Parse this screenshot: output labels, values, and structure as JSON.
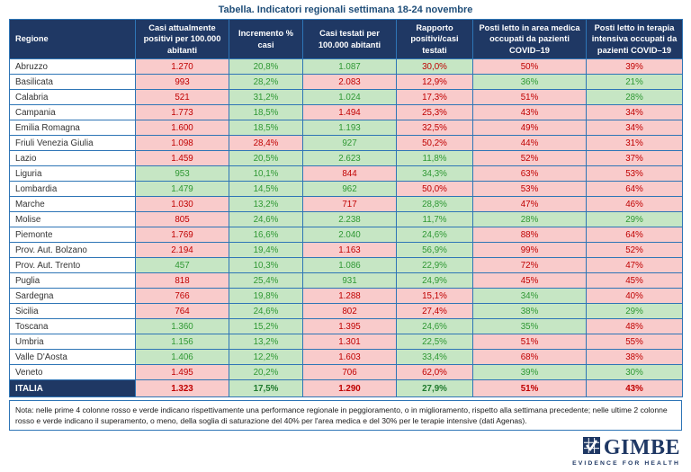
{
  "title": "Tabella. Indicatori regionali settimana 18-24 novembre",
  "colors": {
    "header_bg": "#1f3864",
    "title_text": "#1f4e79",
    "grid_border": "#2e75b6",
    "worsening_bg": "#f9cbcb",
    "worsening_text": "#c00000",
    "improving_bg": "#c6e6c4",
    "improving_text": "#2f9833"
  },
  "table": {
    "columns": [
      "Regione",
      "Casi attualmente positivi per 100.000 abitanti",
      "Incremento % casi",
      "Casi testati per 100.000 abitanti",
      "Rapporto positivi/casi testati",
      "Posti letto in area medica occupati da pazienti COVID–19",
      "Posti letto in terapia intensiva occupati da pazienti COVID–19"
    ],
    "rows": [
      {
        "region": "Abruzzo",
        "cells": [
          {
            "v": "1.270",
            "bg": "red"
          },
          {
            "v": "20,8%",
            "bg": "green"
          },
          {
            "v": "1.087",
            "bg": "green"
          },
          {
            "v": "30,0%",
            "bg": "green",
            "fg": "red"
          },
          {
            "v": "50%",
            "bg": "red"
          },
          {
            "v": "39%",
            "bg": "red"
          }
        ]
      },
      {
        "region": "Basilicata",
        "cells": [
          {
            "v": "993",
            "bg": "red"
          },
          {
            "v": "28,2%",
            "bg": "green"
          },
          {
            "v": "2.083",
            "bg": "red"
          },
          {
            "v": "12,9%",
            "bg": "red"
          },
          {
            "v": "36%",
            "bg": "green"
          },
          {
            "v": "21%",
            "bg": "green"
          }
        ]
      },
      {
        "region": "Calabria",
        "cells": [
          {
            "v": "521",
            "bg": "red"
          },
          {
            "v": "31,2%",
            "bg": "green"
          },
          {
            "v": "1.024",
            "bg": "green"
          },
          {
            "v": "17,3%",
            "bg": "red"
          },
          {
            "v": "51%",
            "bg": "red"
          },
          {
            "v": "28%",
            "bg": "green"
          }
        ]
      },
      {
        "region": "Campania",
        "cells": [
          {
            "v": "1.773",
            "bg": "red"
          },
          {
            "v": "18,5%",
            "bg": "green"
          },
          {
            "v": "1.494",
            "bg": "red"
          },
          {
            "v": "25,3%",
            "bg": "red"
          },
          {
            "v": "43%",
            "bg": "red"
          },
          {
            "v": "34%",
            "bg": "red"
          }
        ]
      },
      {
        "region": "Emilia Romagna",
        "cells": [
          {
            "v": "1.600",
            "bg": "red"
          },
          {
            "v": "18,5%",
            "bg": "green"
          },
          {
            "v": "1.193",
            "bg": "green"
          },
          {
            "v": "32,5%",
            "bg": "red"
          },
          {
            "v": "49%",
            "bg": "red"
          },
          {
            "v": "34%",
            "bg": "red"
          }
        ]
      },
      {
        "region": "Friuli Venezia Giulia",
        "cells": [
          {
            "v": "1.098",
            "bg": "red"
          },
          {
            "v": "28,4%",
            "bg": "red"
          },
          {
            "v": "927",
            "bg": "green"
          },
          {
            "v": "50,2%",
            "bg": "red"
          },
          {
            "v": "44%",
            "bg": "red"
          },
          {
            "v": "31%",
            "bg": "red"
          }
        ]
      },
      {
        "region": "Lazio",
        "cells": [
          {
            "v": "1.459",
            "bg": "red"
          },
          {
            "v": "20,5%",
            "bg": "green"
          },
          {
            "v": "2.623",
            "bg": "green"
          },
          {
            "v": "11,8%",
            "bg": "green"
          },
          {
            "v": "52%",
            "bg": "red"
          },
          {
            "v": "37%",
            "bg": "red"
          }
        ]
      },
      {
        "region": "Liguria",
        "cells": [
          {
            "v": "953",
            "bg": "green"
          },
          {
            "v": "10,1%",
            "bg": "green"
          },
          {
            "v": "844",
            "bg": "red"
          },
          {
            "v": "34,3%",
            "bg": "green"
          },
          {
            "v": "63%",
            "bg": "red"
          },
          {
            "v": "53%",
            "bg": "red"
          }
        ]
      },
      {
        "region": "Lombardia",
        "cells": [
          {
            "v": "1.479",
            "bg": "green"
          },
          {
            "v": "14,5%",
            "bg": "green"
          },
          {
            "v": "962",
            "bg": "green"
          },
          {
            "v": "50,0%",
            "bg": "red"
          },
          {
            "v": "53%",
            "bg": "red"
          },
          {
            "v": "64%",
            "bg": "red"
          }
        ]
      },
      {
        "region": "Marche",
        "cells": [
          {
            "v": "1.030",
            "bg": "red"
          },
          {
            "v": "13,2%",
            "bg": "green"
          },
          {
            "v": "717",
            "bg": "red"
          },
          {
            "v": "28,8%",
            "bg": "green"
          },
          {
            "v": "47%",
            "bg": "red"
          },
          {
            "v": "46%",
            "bg": "red"
          }
        ]
      },
      {
        "region": "Molise",
        "cells": [
          {
            "v": "805",
            "bg": "red"
          },
          {
            "v": "24,6%",
            "bg": "green"
          },
          {
            "v": "2.238",
            "bg": "green"
          },
          {
            "v": "11,7%",
            "bg": "green"
          },
          {
            "v": "28%",
            "bg": "green"
          },
          {
            "v": "29%",
            "bg": "green"
          }
        ]
      },
      {
        "region": "Piemonte",
        "cells": [
          {
            "v": "1.769",
            "bg": "red"
          },
          {
            "v": "16,6%",
            "bg": "green"
          },
          {
            "v": "2.040",
            "bg": "green"
          },
          {
            "v": "24,6%",
            "bg": "green"
          },
          {
            "v": "88%",
            "bg": "red"
          },
          {
            "v": "64%",
            "bg": "red"
          }
        ]
      },
      {
        "region": "Prov. Aut. Bolzano",
        "cells": [
          {
            "v": "2.194",
            "bg": "red"
          },
          {
            "v": "19,4%",
            "bg": "green"
          },
          {
            "v": "1.163",
            "bg": "red"
          },
          {
            "v": "56,9%",
            "bg": "green"
          },
          {
            "v": "99%",
            "bg": "red"
          },
          {
            "v": "52%",
            "bg": "red"
          }
        ]
      },
      {
        "region": "Prov. Aut. Trento",
        "cells": [
          {
            "v": "457",
            "bg": "green"
          },
          {
            "v": "10,3%",
            "bg": "green"
          },
          {
            "v": "1.086",
            "bg": "green"
          },
          {
            "v": "22,9%",
            "bg": "green"
          },
          {
            "v": "72%",
            "bg": "red"
          },
          {
            "v": "47%",
            "bg": "red"
          }
        ]
      },
      {
        "region": "Puglia",
        "cells": [
          {
            "v": "818",
            "bg": "red"
          },
          {
            "v": "25,4%",
            "bg": "green"
          },
          {
            "v": "931",
            "bg": "green"
          },
          {
            "v": "24,9%",
            "bg": "green"
          },
          {
            "v": "45%",
            "bg": "red"
          },
          {
            "v": "45%",
            "bg": "red"
          }
        ]
      },
      {
        "region": "Sardegna",
        "cells": [
          {
            "v": "766",
            "bg": "red"
          },
          {
            "v": "19,8%",
            "bg": "green"
          },
          {
            "v": "1.288",
            "bg": "red"
          },
          {
            "v": "15,1%",
            "bg": "red"
          },
          {
            "v": "34%",
            "bg": "green"
          },
          {
            "v": "40%",
            "bg": "red"
          }
        ]
      },
      {
        "region": "Sicilia",
        "cells": [
          {
            "v": "764",
            "bg": "red"
          },
          {
            "v": "24,6%",
            "bg": "green"
          },
          {
            "v": "802",
            "bg": "red"
          },
          {
            "v": "27,4%",
            "bg": "red"
          },
          {
            "v": "38%",
            "bg": "green"
          },
          {
            "v": "29%",
            "bg": "green"
          }
        ]
      },
      {
        "region": "Toscana",
        "cells": [
          {
            "v": "1.360",
            "bg": "green"
          },
          {
            "v": "15,2%",
            "bg": "green"
          },
          {
            "v": "1.395",
            "bg": "red"
          },
          {
            "v": "24,6%",
            "bg": "green"
          },
          {
            "v": "35%",
            "bg": "green"
          },
          {
            "v": "48%",
            "bg": "red"
          }
        ]
      },
      {
        "region": "Umbria",
        "cells": [
          {
            "v": "1.156",
            "bg": "green"
          },
          {
            "v": "13,2%",
            "bg": "green"
          },
          {
            "v": "1.301",
            "bg": "red"
          },
          {
            "v": "22,5%",
            "bg": "green"
          },
          {
            "v": "51%",
            "bg": "red"
          },
          {
            "v": "55%",
            "bg": "red"
          }
        ]
      },
      {
        "region": "Valle D'Aosta",
        "cells": [
          {
            "v": "1.406",
            "bg": "green"
          },
          {
            "v": "12,2%",
            "bg": "green"
          },
          {
            "v": "1.603",
            "bg": "red"
          },
          {
            "v": "33,4%",
            "bg": "green"
          },
          {
            "v": "68%",
            "bg": "red"
          },
          {
            "v": "38%",
            "bg": "red"
          }
        ]
      },
      {
        "region": "Veneto",
        "cells": [
          {
            "v": "1.495",
            "bg": "red"
          },
          {
            "v": "20,2%",
            "bg": "green"
          },
          {
            "v": "706",
            "bg": "red"
          },
          {
            "v": "62,0%",
            "bg": "red"
          },
          {
            "v": "39%",
            "bg": "green"
          },
          {
            "v": "30%",
            "bg": "green"
          }
        ]
      }
    ],
    "total": {
      "region": "ITALIA",
      "cells": [
        {
          "v": "1.323",
          "bg": "red"
        },
        {
          "v": "17,5%",
          "bg": "green"
        },
        {
          "v": "1.290",
          "bg": "red"
        },
        {
          "v": "27,9%",
          "bg": "green"
        },
        {
          "v": "51%",
          "bg": "red"
        },
        {
          "v": "43%",
          "bg": "red"
        }
      ]
    }
  },
  "note": "Nota: nelle prime 4 colonne rosso e verde indicano rispettivamente una performance regionale in peggioramento, o in miglioramento, rispetto alla settimana precedente; nelle ultime 2 colonne rosso e verde indicano il superamento, o meno, della soglia di saturazione del 40% per l'area medica e del 30% per le terapie intensive (dati Agenas).",
  "logo": {
    "name": "GIMBE",
    "tagline": "EVIDENCE FOR HEALTH"
  }
}
